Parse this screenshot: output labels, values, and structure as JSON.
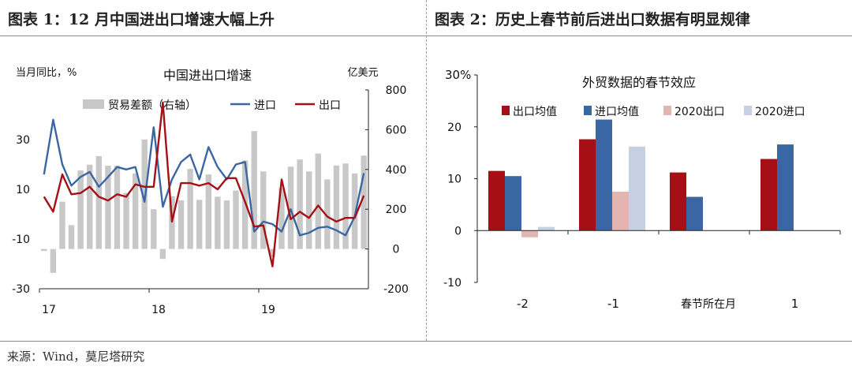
{
  "header": {
    "left_title": "图表 1：12 月中国进出口增速大幅上升",
    "right_title": "图表 2：历史上春节前后进出口数据有明显规律"
  },
  "source": "来源：Wind，莫尼塔研究",
  "colors": {
    "export": "#a50f15",
    "import": "#3a67a3",
    "balance": "#c8c8c8",
    "export2020": "#e3b5b0",
    "import2020": "#c5d1e3"
  },
  "chart_data": [
    {
      "type": "line",
      "title": "中国进出口增速",
      "ylabel": "当月同比，%",
      "y2label": "亿美元",
      "ylim": [
        -30,
        50
      ],
      "y2lim": [
        -200,
        800
      ],
      "yticks": [
        30,
        10,
        -10,
        -30
      ],
      "y2ticks": [
        800,
        600,
        400,
        200,
        0,
        -200
      ],
      "x_tick_labels": [
        "17",
        "18",
        "19"
      ],
      "grid": false,
      "legend_position": "top",
      "series": [
        {
          "name": "贸易差额（右轴）",
          "kind": "bar",
          "axis": "right",
          "values": [
            -10,
            -120,
            238,
            120,
            395,
            424,
            467,
            419,
            419,
            282,
            380,
            551,
            200,
            -50,
            265,
            245,
            403,
            247,
            375,
            263,
            244,
            294,
            445,
            593,
            390,
            -40,
            306,
            414,
            450,
            390,
            480,
            350,
            420,
            430,
            380,
            470
          ]
        },
        {
          "name": "进口",
          "kind": "line",
          "axis": "left",
          "values": [
            16.0,
            38.0,
            20.0,
            11.5,
            15.0,
            17.0,
            11.0,
            15.0,
            19.0,
            18.0,
            19.0,
            5.0,
            35.0,
            3.0,
            14.0,
            21.0,
            24.0,
            14.0,
            27.0,
            19.0,
            14.0,
            20.0,
            21.0,
            -7.0,
            -3.0,
            -4.0,
            -7.0,
            2.0,
            -8.5,
            -7.5,
            -5.5,
            -5.0,
            -6.5,
            -8.5,
            -1.0,
            16.5
          ]
        },
        {
          "name": "出口",
          "kind": "line",
          "axis": "left",
          "values": [
            7.0,
            1.0,
            16.0,
            8.0,
            8.5,
            11.0,
            7.0,
            5.5,
            8.0,
            7.0,
            12.0,
            11.0,
            11.0,
            45.0,
            -3.0,
            12.5,
            12.5,
            11.5,
            12.5,
            10.0,
            14.5,
            14.5,
            5.0,
            -5.0,
            -4.5,
            -21.0,
            14.0,
            -2.0,
            1.0,
            -1.5,
            3.5,
            -1.0,
            -3.0,
            -1.5,
            -1.5,
            7.5
          ]
        }
      ]
    },
    {
      "type": "bar",
      "title": "外贸数据的春节效应",
      "xlabel": "春节所在月",
      "categories": [
        "-2",
        "-1",
        "0",
        "1"
      ],
      "category_labels": [
        "-2",
        "-1",
        "",
        "1"
      ],
      "ylim": [
        -10,
        30
      ],
      "yticks": [
        "30%",
        "20",
        "10",
        "0",
        "-10"
      ],
      "grid": false,
      "legend_position": "top",
      "series": [
        {
          "name": "出口均值",
          "values": [
            11.5,
            17.6,
            11.2,
            13.8
          ]
        },
        {
          "name": "进口均值",
          "values": [
            10.5,
            21.4,
            6.5,
            16.6
          ]
        },
        {
          "name": "2020出口",
          "values": [
            -1.3,
            7.5,
            null,
            null
          ]
        },
        {
          "name": "2020进口",
          "values": [
            0.7,
            16.2,
            null,
            null
          ]
        }
      ]
    }
  ]
}
